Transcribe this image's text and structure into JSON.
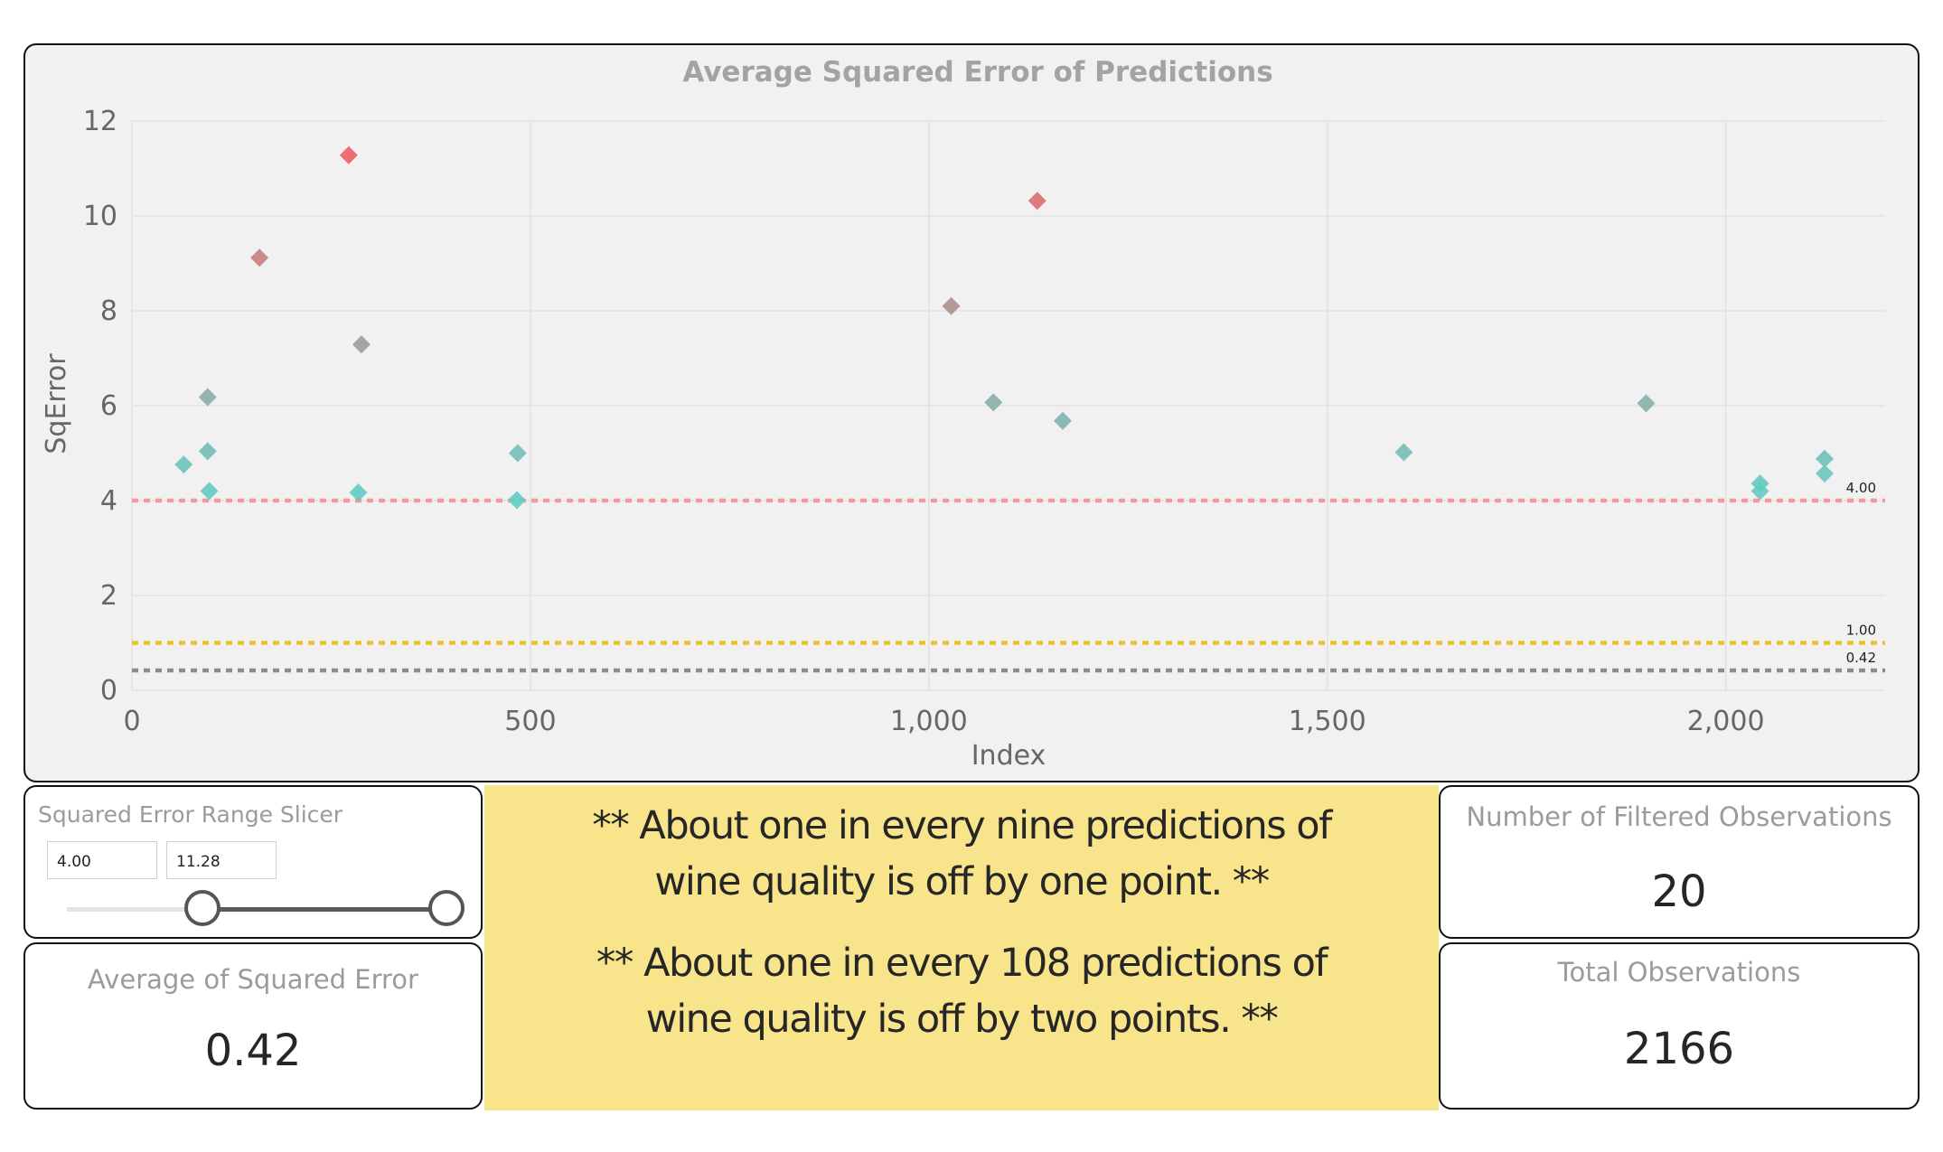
{
  "chart_data": {
    "type": "scatter",
    "title": "Average Squared Error of Predictions",
    "xlabel": "Index",
    "ylabel": "SqError",
    "xlim": [
      0,
      2200
    ],
    "ylim": [
      0,
      12
    ],
    "xticks": [
      0,
      500,
      1000,
      1500,
      2000
    ],
    "xtick_labels": [
      "0",
      "500",
      "1,000",
      "1,500",
      "2,000"
    ],
    "yticks": [
      0,
      2,
      4,
      6,
      8,
      10,
      12
    ],
    "grid": true,
    "color_scale": {
      "low": "#5fcec5",
      "high": "#ec5f64",
      "min": 4.0,
      "max": 11.28
    },
    "points": [
      {
        "x": 65,
        "y": 4.76
      },
      {
        "x": 95,
        "y": 5.04
      },
      {
        "x": 95,
        "y": 6.18
      },
      {
        "x": 97,
        "y": 4.2
      },
      {
        "x": 160,
        "y": 9.12
      },
      {
        "x": 272,
        "y": 11.28
      },
      {
        "x": 284,
        "y": 4.17
      },
      {
        "x": 288,
        "y": 7.29
      },
      {
        "x": 484,
        "y": 5.0
      },
      {
        "x": 483,
        "y": 4.01
      },
      {
        "x": 1028,
        "y": 8.1
      },
      {
        "x": 1081,
        "y": 6.07
      },
      {
        "x": 1136,
        "y": 10.32
      },
      {
        "x": 1168,
        "y": 5.68
      },
      {
        "x": 1596,
        "y": 5.02
      },
      {
        "x": 1900,
        "y": 6.05
      },
      {
        "x": 2043,
        "y": 4.36
      },
      {
        "x": 2043,
        "y": 4.2
      },
      {
        "x": 2124,
        "y": 4.88
      },
      {
        "x": 2124,
        "y": 4.57
      }
    ],
    "reference_lines": [
      {
        "value": 4.0,
        "label": "4.00",
        "color": "#f4999b"
      },
      {
        "value": 1.0,
        "label": "1.00",
        "color": "#e9c32d"
      },
      {
        "value": 0.42,
        "label": "0.42",
        "color": "#8c8c8c"
      }
    ]
  },
  "slicer": {
    "title": "Squared Error Range Slicer",
    "min_value": "4.00",
    "max_value": "11.28",
    "range_min": 0,
    "range_max": 11.28
  },
  "note": {
    "line1a": "** About one in every nine predictions of",
    "line1b": "wine quality is off by one point. **",
    "line2a": "** About one in every 108 predictions of",
    "line2b": "wine quality is off by two points. **",
    "background": "#f8e48a"
  },
  "cards": {
    "avg_label": "Average of Squared Error",
    "avg_value": "0.42",
    "filtered_label": "Number of Filtered Observations",
    "filtered_value": "20",
    "total_label": "Total Observations",
    "total_value": "2166"
  }
}
